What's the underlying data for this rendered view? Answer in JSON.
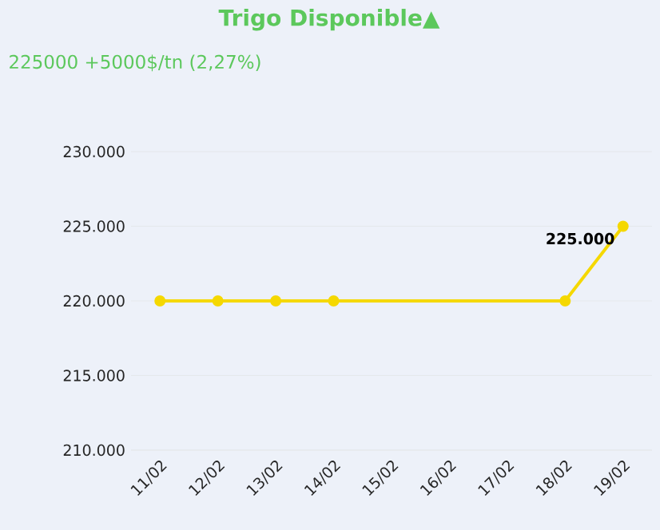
{
  "chart_data": {
    "type": "line",
    "title": "Trigo Disponible▲",
    "subtitle": "225000 +5000$/tn (2,27%)",
    "categories": [
      "11/02",
      "12/02",
      "13/02",
      "14/02",
      "15/02",
      "16/02",
      "17/02",
      "18/02",
      "19/02"
    ],
    "series": [
      {
        "color": "#f5d800",
        "values": [
          220000,
          220000,
          220000,
          220000,
          null,
          null,
          null,
          220000,
          225000
        ],
        "value_labels": [
          null,
          null,
          null,
          null,
          null,
          null,
          null,
          null,
          "225.000"
        ]
      }
    ],
    "ylim": [
      210000,
      230000
    ],
    "yticks": [
      {
        "value": 210000,
        "label": "210.000"
      },
      {
        "value": 215000,
        "label": "215.000"
      },
      {
        "value": 220000,
        "label": "220.000"
      },
      {
        "value": 225000,
        "label": "225.000"
      },
      {
        "value": 230000,
        "label": "230.000"
      }
    ],
    "grid": "y",
    "marker": "circle",
    "line_style": "solid"
  }
}
